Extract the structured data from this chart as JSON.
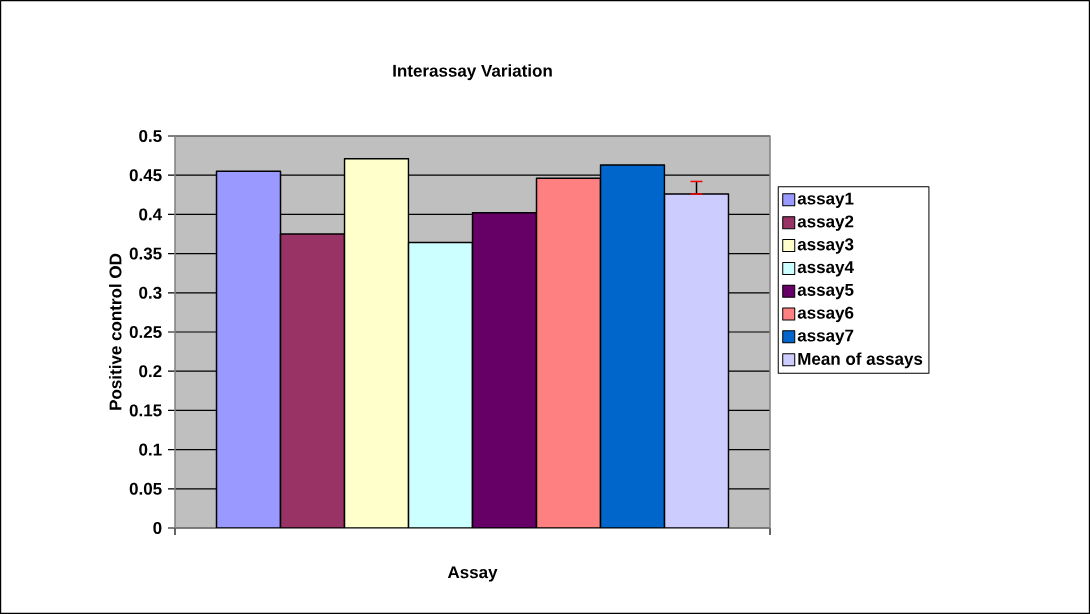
{
  "chart_data": {
    "type": "bar",
    "title": "Interassay Variation",
    "xlabel": "Assay",
    "ylabel": "Positive control OD",
    "categories": [
      null
    ],
    "series": [
      {
        "name": "assay1",
        "color": "#9999ff",
        "values": [
          0.455
        ]
      },
      {
        "name": "assay2",
        "color": "#993366",
        "values": [
          0.375
        ]
      },
      {
        "name": "assay3",
        "color": "#ffffcc",
        "values": [
          0.471
        ]
      },
      {
        "name": "assay4",
        "color": "#ccffff",
        "values": [
          0.364
        ]
      },
      {
        "name": "assay5",
        "color": "#660066",
        "values": [
          0.402
        ]
      },
      {
        "name": "assay6",
        "color": "#ff8080",
        "values": [
          0.446
        ]
      },
      {
        "name": "assay7",
        "color": "#0066cc",
        "values": [
          0.463
        ]
      },
      {
        "name": "Mean of assays",
        "color": "#ccccff",
        "values": [
          0.426
        ],
        "errors": [
          [
            0.426,
            0.442
          ]
        ]
      }
    ],
    "ylim": [
      0,
      0.5
    ],
    "yticks": [
      0,
      0.05,
      0.1,
      0.15,
      0.2,
      0.25,
      0.3,
      0.35,
      0.4,
      0.45,
      0.5
    ],
    "grid": "y",
    "legend": "right",
    "tick_labels": "y"
  }
}
